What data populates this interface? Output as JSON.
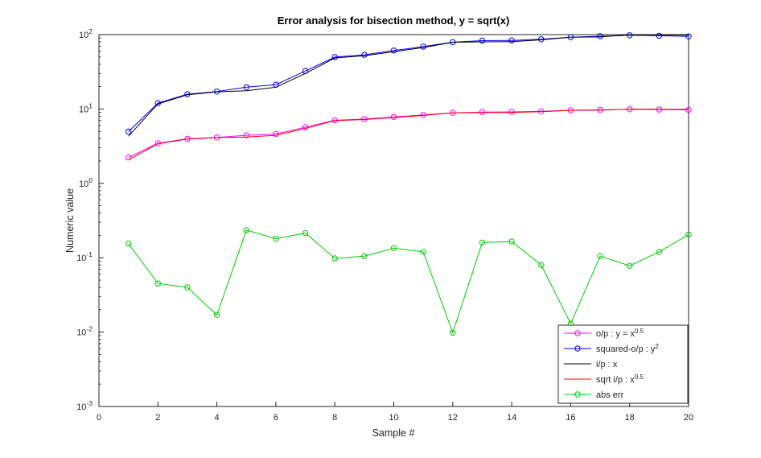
{
  "chart_data": {
    "type": "line",
    "title": "Error analysis for bisection method, y = sqrt(x)",
    "xlabel": "Sample #",
    "ylabel": "Numeric value",
    "xlim": [
      0,
      20
    ],
    "ylim": [
      0.001,
      100
    ],
    "yscale": "log",
    "grid": false,
    "legend_position": "south-east-inside",
    "xticks": [
      0,
      2,
      4,
      6,
      8,
      10,
      12,
      14,
      16,
      18,
      20
    ],
    "ytick_exponents": [
      -3,
      -2,
      -1,
      0,
      1,
      2
    ],
    "x": [
      1,
      2,
      3,
      4,
      5,
      6,
      7,
      8,
      9,
      10,
      11,
      12,
      13,
      14,
      15,
      16,
      17,
      18,
      19,
      20
    ],
    "series": [
      {
        "name": "o/p  :  y  =  x^{0.5}",
        "color": "#ff00ff",
        "marker": "circle",
        "values": [
          2.23,
          3.47,
          3.98,
          4.14,
          4.43,
          4.61,
          5.69,
          7.06,
          7.32,
          7.82,
          8.31,
          8.9,
          9.1,
          9.14,
          9.3,
          9.61,
          9.75,
          9.9,
          9.83,
          9.72
        ]
      },
      {
        "name": "squared-o/p  :  y^{2}",
        "color": "#0000ff",
        "marker": "circle",
        "values": [
          4.97,
          12.01,
          15.82,
          17.14,
          19.63,
          21.22,
          32.4,
          49.87,
          53.52,
          61.09,
          68.97,
          79.17,
          82.88,
          83.49,
          86.49,
          92.26,
          95.04,
          97.95,
          96.63,
          94.48
        ]
      },
      {
        "name": "i/p : x",
        "color": "#000000",
        "marker": "none",
        "values": [
          4.3,
          11.7,
          15.5,
          17.0,
          17.6,
          19.6,
          30.0,
          48.5,
          52.0,
          59.0,
          67.0,
          79.0,
          80.0,
          80.5,
          85.0,
          92.0,
          93.0,
          99.5,
          99.0,
          98.5
        ]
      },
      {
        "name": "sqrt  i/p  :  x^{0.5}",
        "color": "#ff0000",
        "marker": "none",
        "values": [
          2.07,
          3.42,
          3.94,
          4.12,
          4.2,
          4.43,
          5.48,
          6.96,
          7.21,
          7.68,
          8.19,
          8.89,
          8.94,
          8.97,
          9.22,
          9.59,
          9.64,
          9.97,
          9.95,
          9.92
        ]
      },
      {
        "name": "abs err",
        "color": "#00cc00",
        "marker": "circle",
        "values": [
          0.155,
          0.045,
          0.04,
          0.017,
          0.235,
          0.18,
          0.215,
          0.098,
          0.105,
          0.135,
          0.12,
          0.0098,
          0.16,
          0.165,
          0.08,
          0.013,
          0.105,
          0.078,
          0.12,
          0.205
        ]
      }
    ]
  }
}
